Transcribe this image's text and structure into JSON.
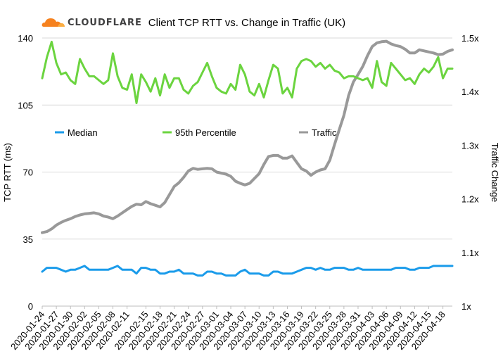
{
  "brand": {
    "name": "CLOUDFLARE"
  },
  "chart_data": {
    "type": "line",
    "title": "Client TCP RTT vs. Change in Traffic (UK)",
    "ylabel": "TCP RTT (ms)",
    "y2label": "Traffic Change",
    "ylim": [
      0,
      140
    ],
    "y_ticks": [
      "0",
      "35",
      "70",
      "105",
      "140"
    ],
    "y2lim": [
      1.0,
      1.5
    ],
    "y2_ticks": [
      "1x",
      "1.1x",
      "1.2x",
      "1.3x",
      "1.4x",
      "1.5x"
    ],
    "grid": true,
    "legend_position": "center-top",
    "x": [
      "2020-01-24",
      "2020-01-25",
      "2020-01-26",
      "2020-01-27",
      "2020-01-28",
      "2020-01-29",
      "2020-01-30",
      "2020-01-31",
      "2020-02-01",
      "2020-02-02",
      "2020-02-03",
      "2020-02-04",
      "2020-02-05",
      "2020-02-06",
      "2020-02-07",
      "2020-02-08",
      "2020-02-09",
      "2020-02-10",
      "2020-02-11",
      "2020-02-12",
      "2020-02-13",
      "2020-02-14",
      "2020-02-15",
      "2020-02-16",
      "2020-02-17",
      "2020-02-18",
      "2020-02-19",
      "2020-02-20",
      "2020-02-21",
      "2020-02-22",
      "2020-02-23",
      "2020-02-24",
      "2020-02-25",
      "2020-02-26",
      "2020-02-27",
      "2020-02-28",
      "2020-02-29",
      "2020-03-01",
      "2020-03-02",
      "2020-03-03",
      "2020-03-04",
      "2020-03-05",
      "2020-03-06",
      "2020-03-07",
      "2020-03-08",
      "2020-03-09",
      "2020-03-10",
      "2020-03-11",
      "2020-03-12",
      "2020-03-13",
      "2020-03-14",
      "2020-03-15",
      "2020-03-16",
      "2020-03-17",
      "2020-03-18",
      "2020-03-19",
      "2020-03-20",
      "2020-03-21",
      "2020-03-22",
      "2020-03-23",
      "2020-03-24",
      "2020-03-25",
      "2020-03-26",
      "2020-03-27",
      "2020-03-28",
      "2020-03-29",
      "2020-03-30",
      "2020-03-31",
      "2020-04-01",
      "2020-04-02",
      "2020-04-03",
      "2020-04-04",
      "2020-04-05",
      "2020-04-06",
      "2020-04-07",
      "2020-04-08",
      "2020-04-09",
      "2020-04-10",
      "2020-04-11",
      "2020-04-12",
      "2020-04-13",
      "2020-04-14",
      "2020-04-15",
      "2020-04-16",
      "2020-04-17",
      "2020-04-18",
      "2020-04-19",
      "2020-04-20"
    ],
    "x_tick_labels": [
      "2020-01-24",
      "2020-01-27",
      "2020-01-30",
      "2020-02-02",
      "2020-02-05",
      "2020-02-08",
      "2020-02-11",
      "2020-02-15",
      "2020-02-18",
      "2020-02-21",
      "2020-02-24",
      "2020-02-27",
      "2020-03-01",
      "2020-03-04",
      "2020-03-07",
      "2020-03-10",
      "2020-03-13",
      "2020-03-16",
      "2020-03-19",
      "2020-03-22",
      "2020-03-25",
      "2020-03-28",
      "2020-03-31",
      "2020-04-03",
      "2020-04-06",
      "2020-04-09",
      "2020-04-12",
      "2020-04-15",
      "2020-04-18"
    ],
    "series": [
      {
        "name": "Median",
        "axis": "left",
        "color": "#1a9bea",
        "values": [
          18,
          20,
          20,
          20,
          19,
          18,
          19,
          19,
          20,
          21,
          19,
          19,
          19,
          19,
          19,
          20,
          21,
          19,
          19,
          19,
          17,
          20,
          20,
          19,
          19,
          17,
          17,
          18,
          18,
          19,
          17,
          17,
          17,
          16,
          16,
          18,
          18,
          17,
          17,
          16,
          16,
          16,
          18,
          19,
          17,
          17,
          17,
          16,
          16,
          18,
          18,
          17,
          17,
          17,
          18,
          19,
          20,
          20,
          19,
          20,
          19,
          19,
          20,
          20,
          20,
          19,
          19,
          20,
          19,
          19,
          19,
          19,
          19,
          19,
          19,
          20,
          20,
          20,
          19,
          19,
          20,
          20,
          20,
          21,
          21,
          21,
          21,
          21
        ]
      },
      {
        "name": "95th Percentile",
        "axis": "left",
        "color": "#6bd43f",
        "values": [
          119,
          130,
          138,
          127,
          121,
          122,
          118,
          116,
          129,
          124,
          120,
          120,
          118,
          116,
          118,
          132,
          120,
          114,
          113,
          121,
          106,
          121,
          117,
          112,
          119,
          110,
          121,
          114,
          119,
          119,
          113,
          111,
          115,
          117,
          122,
          127,
          120,
          114,
          112,
          111,
          116,
          113,
          126,
          121,
          112,
          110,
          116,
          109,
          118,
          126,
          124,
          111,
          114,
          109,
          124,
          128,
          129,
          128,
          125,
          127,
          124,
          126,
          123,
          122,
          119,
          120,
          120,
          119,
          118,
          119,
          114,
          128,
          117,
          115,
          127,
          124,
          121,
          118,
          119,
          116,
          121,
          124,
          122,
          125,
          130,
          119,
          124,
          124
        ]
      },
      {
        "name": "Traffic",
        "axis": "right",
        "color": "#999999",
        "values": [
          1.137,
          1.139,
          1.144,
          1.151,
          1.156,
          1.16,
          1.163,
          1.167,
          1.17,
          1.172,
          1.173,
          1.174,
          1.172,
          1.168,
          1.166,
          1.163,
          1.168,
          1.174,
          1.18,
          1.186,
          1.19,
          1.189,
          1.195,
          1.191,
          1.188,
          1.185,
          1.193,
          1.208,
          1.223,
          1.23,
          1.24,
          1.252,
          1.257,
          1.255,
          1.256,
          1.257,
          1.256,
          1.25,
          1.248,
          1.246,
          1.242,
          1.233,
          1.229,
          1.226,
          1.229,
          1.238,
          1.247,
          1.264,
          1.279,
          1.281,
          1.281,
          1.276,
          1.276,
          1.28,
          1.268,
          1.256,
          1.252,
          1.244,
          1.25,
          1.254,
          1.256,
          1.272,
          1.301,
          1.329,
          1.356,
          1.393,
          1.418,
          1.432,
          1.447,
          1.467,
          1.484,
          1.491,
          1.493,
          1.494,
          1.489,
          1.486,
          1.484,
          1.479,
          1.472,
          1.472,
          1.478,
          1.476,
          1.474,
          1.472,
          1.469,
          1.47,
          1.475,
          1.478
        ]
      }
    ]
  }
}
